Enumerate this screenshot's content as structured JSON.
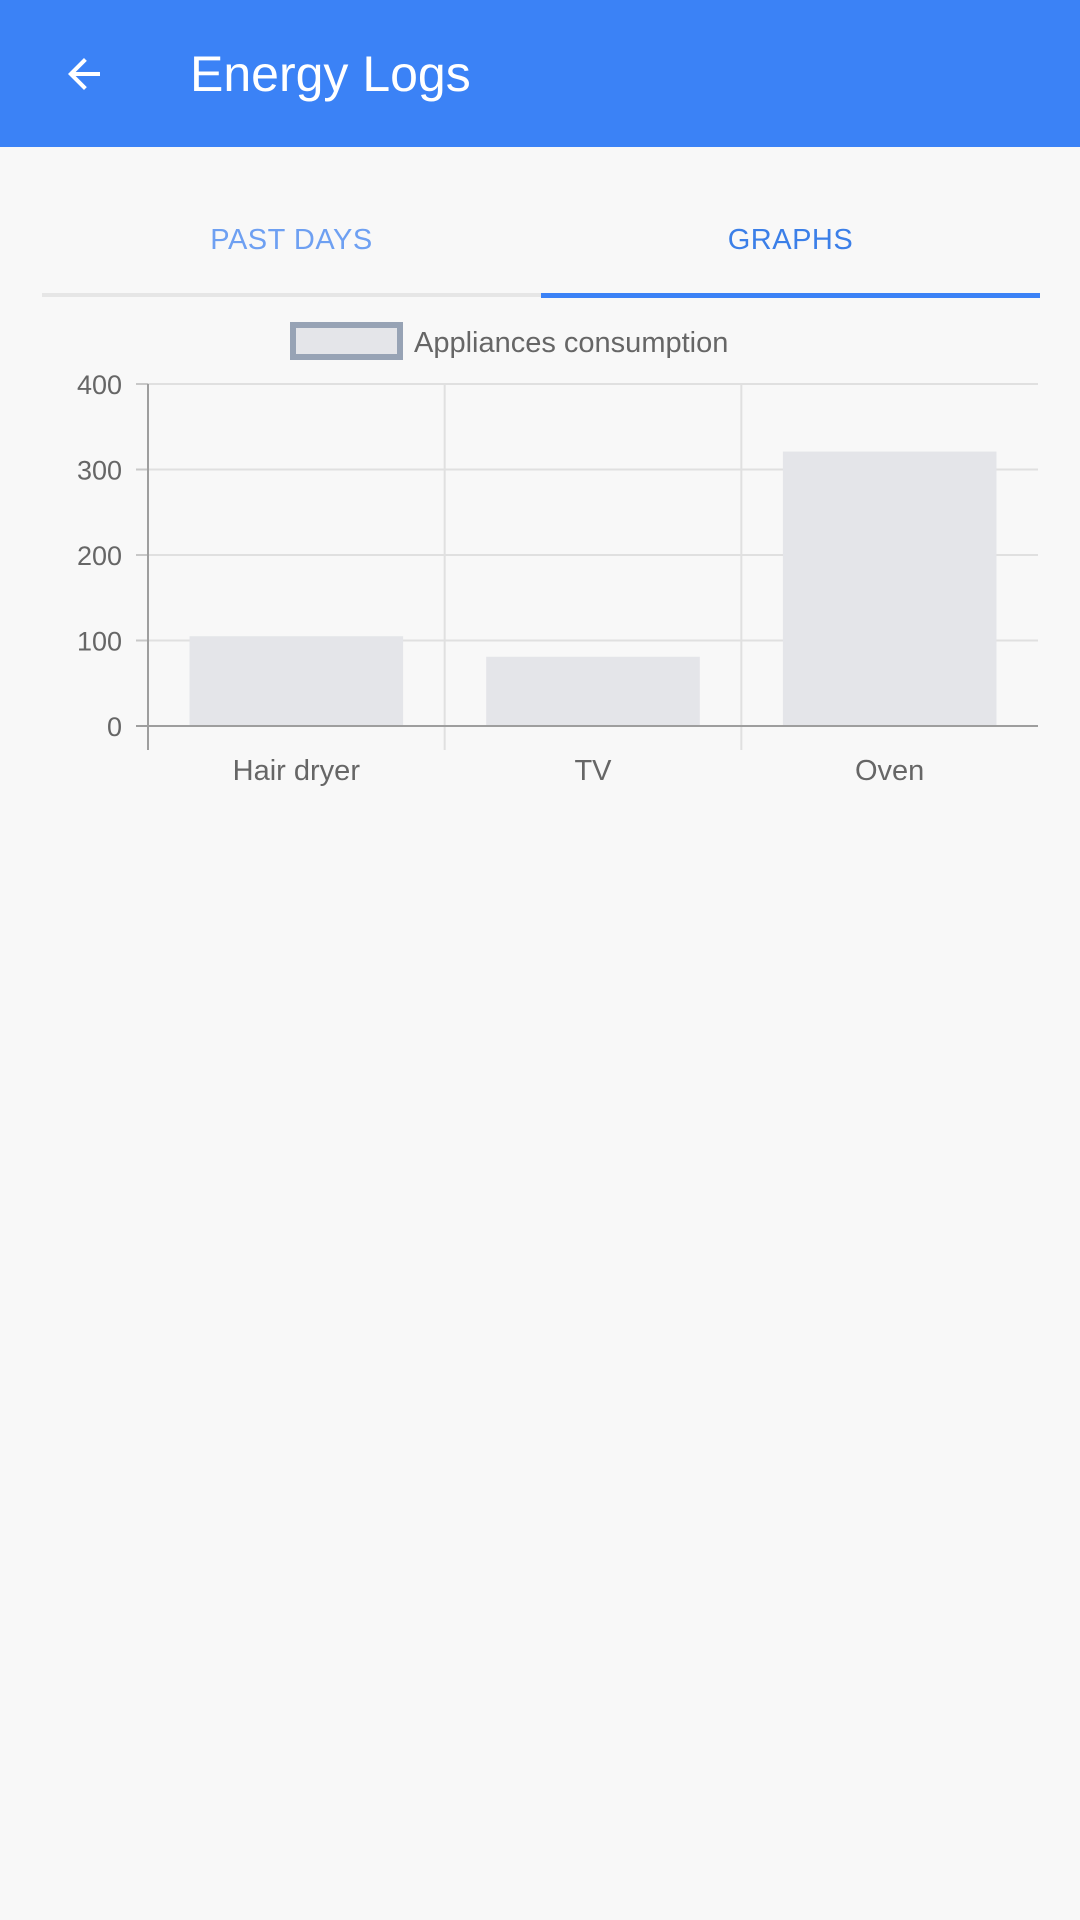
{
  "app_bar": {
    "title": "Energy Logs",
    "back_icon": "arrow-back-icon",
    "background_color": "#3b82f6"
  },
  "tabs": [
    {
      "label": "PAST DAYS",
      "selected": false
    },
    {
      "label": "GRAPHS",
      "selected": true
    }
  ],
  "chart_data": {
    "type": "bar",
    "categories": [
      "Hair dryer",
      "TV",
      "Oven"
    ],
    "series": [
      {
        "name": "Appliances consumption",
        "values": [
          105,
          81,
          321
        ]
      }
    ],
    "yticks": [
      0,
      100,
      200,
      300,
      400
    ],
    "ylim": [
      0,
      400
    ],
    "legend_position": "top",
    "grid": true,
    "bar_color": "#e4e5e9",
    "legend_border_color": "#97a3b5"
  }
}
